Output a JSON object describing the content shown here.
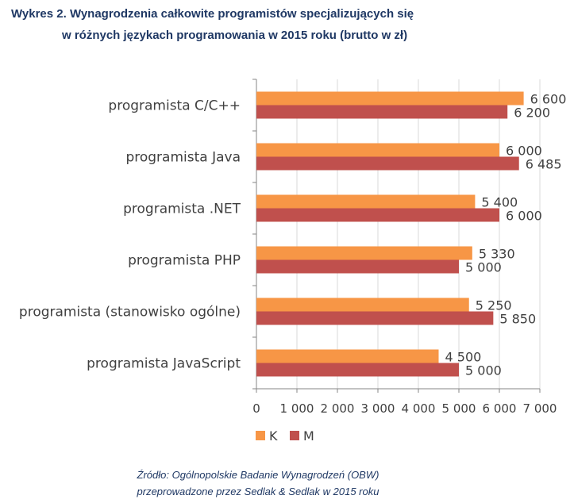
{
  "title": {
    "line1": "Wykres 2. Wynagrodzenia całkowite programistów specjalizujących się",
    "line2": "w różnych językach programowania  w 2015 roku (brutto w zł)"
  },
  "source": {
    "line1": "Źródło: Ogólnopolskie Badanie Wynagrodzeń (OBW)",
    "line2": "przeprowadzone przez Sedlak & Sedlak w 2015 roku"
  },
  "chart_data": {
    "type": "bar",
    "orientation": "horizontal",
    "categories": [
      "programista C/C++",
      "programista Java",
      "programista .NET",
      "programista PHP",
      "programista (stanowisko ogólne)",
      "programista JavaScript"
    ],
    "series": [
      {
        "name": "K",
        "color": "#f79646",
        "values": [
          6600,
          6000,
          5400,
          5330,
          5250,
          4500
        ],
        "labels": [
          "6 600",
          "6 000",
          "5 400",
          "5 330",
          "5 250",
          "4 500"
        ]
      },
      {
        "name": "M",
        "color": "#c0504d",
        "values": [
          6200,
          6485,
          6000,
          5000,
          5850,
          5000
        ],
        "labels": [
          "6 200",
          "6 485",
          "6 000",
          "5 000",
          "5 850",
          "5 000"
        ]
      }
    ],
    "xlim": [
      0,
      7000
    ],
    "xticks": [
      0,
      1000,
      2000,
      3000,
      4000,
      5000,
      6000,
      7000
    ],
    "xtick_labels": [
      "0",
      "1 000",
      "2 000",
      "3 000",
      "4 000",
      "5 000",
      "6 000",
      "7 000"
    ],
    "grid": "vertical",
    "legend_position": "bottom-left"
  }
}
